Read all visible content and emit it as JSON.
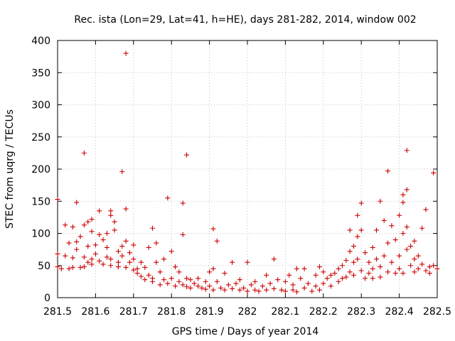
{
  "chart_data": {
    "type": "scatter",
    "title": "Rec. ista (Lon=29, Lat=41, h=HE), days 281-282, 2014, window 002",
    "xlabel": "GPS time / Days of year 2014",
    "ylabel": "STEC from uqrg / TECUs",
    "xlim": [
      281.5,
      282.5
    ],
    "ylim": [
      0,
      400
    ],
    "xticks": [
      281.5,
      281.6,
      281.7,
      281.8,
      281.9,
      282,
      282.1,
      282.2,
      282.3,
      282.4,
      282.5
    ],
    "xtick_labels": [
      "281.5",
      "281.6",
      "281.7",
      "281.8",
      "281.9",
      "282",
      "282.1",
      "282.2",
      "282.3",
      "282.4",
      "282.5"
    ],
    "yticks": [
      0,
      50,
      100,
      150,
      200,
      250,
      300,
      350,
      400
    ],
    "ytick_labels": [
      "0",
      "50",
      "100",
      "150",
      "200",
      "250",
      "300",
      "350",
      "400"
    ],
    "grid": true,
    "marker": "+",
    "color": "#cc0000",
    "series": [
      {
        "name": "STEC",
        "points": [
          [
            281.5,
            153
          ],
          [
            281.5,
            68
          ],
          [
            281.5,
            48
          ],
          [
            281.51,
            45
          ],
          [
            281.52,
            65
          ],
          [
            281.52,
            113
          ],
          [
            281.53,
            85
          ],
          [
            281.53,
            45
          ],
          [
            281.54,
            110
          ],
          [
            281.54,
            62
          ],
          [
            281.54,
            47
          ],
          [
            281.55,
            87
          ],
          [
            281.55,
            148
          ],
          [
            281.55,
            75
          ],
          [
            281.56,
            47
          ],
          [
            281.56,
            95
          ],
          [
            281.57,
            63
          ],
          [
            281.57,
            113
          ],
          [
            281.57,
            225
          ],
          [
            281.57,
            48
          ],
          [
            281.58,
            118
          ],
          [
            281.58,
            80
          ],
          [
            281.58,
            55
          ],
          [
            281.59,
            103
          ],
          [
            281.59,
            122
          ],
          [
            281.59,
            60
          ],
          [
            281.59,
            52
          ],
          [
            281.6,
            82
          ],
          [
            281.6,
            68
          ],
          [
            281.61,
            98
          ],
          [
            281.61,
            135
          ],
          [
            281.61,
            57
          ],
          [
            281.62,
            90
          ],
          [
            281.62,
            52
          ],
          [
            281.63,
            100
          ],
          [
            281.63,
            63
          ],
          [
            281.63,
            78
          ],
          [
            281.64,
            128
          ],
          [
            281.64,
            135
          ],
          [
            281.64,
            60
          ],
          [
            281.64,
            50
          ],
          [
            281.65,
            118
          ],
          [
            281.65,
            105
          ],
          [
            281.66,
            72
          ],
          [
            281.66,
            55
          ],
          [
            281.66,
            48
          ],
          [
            281.67,
            196
          ],
          [
            281.67,
            80
          ],
          [
            281.67,
            65
          ],
          [
            281.68,
            380
          ],
          [
            281.68,
            138
          ],
          [
            281.68,
            88
          ],
          [
            281.68,
            47
          ],
          [
            281.69,
            70
          ],
          [
            281.69,
            55
          ],
          [
            281.7,
            82
          ],
          [
            281.7,
            60
          ],
          [
            281.7,
            43
          ],
          [
            281.71,
            45
          ],
          [
            281.71,
            38
          ],
          [
            281.72,
            55
          ],
          [
            281.72,
            33
          ],
          [
            281.73,
            47
          ],
          [
            281.73,
            28
          ],
          [
            281.74,
            78
          ],
          [
            281.74,
            35
          ],
          [
            281.75,
            108
          ],
          [
            281.75,
            30
          ],
          [
            281.75,
            25
          ],
          [
            281.76,
            85
          ],
          [
            281.76,
            55
          ],
          [
            281.77,
            20
          ],
          [
            281.77,
            40
          ],
          [
            281.78,
            60
          ],
          [
            281.78,
            28
          ],
          [
            281.79,
            155
          ],
          [
            281.79,
            22
          ],
          [
            281.8,
            72
          ],
          [
            281.8,
            30
          ],
          [
            281.81,
            48
          ],
          [
            281.81,
            18
          ],
          [
            281.82,
            40
          ],
          [
            281.82,
            25
          ],
          [
            281.83,
            147
          ],
          [
            281.83,
            98
          ],
          [
            281.83,
            20
          ],
          [
            281.84,
            222
          ],
          [
            281.84,
            30
          ],
          [
            281.84,
            17
          ],
          [
            281.85,
            28
          ],
          [
            281.85,
            15
          ],
          [
            281.86,
            22
          ],
          [
            281.87,
            18
          ],
          [
            281.87,
            30
          ],
          [
            281.88,
            15
          ],
          [
            281.89,
            25
          ],
          [
            281.89,
            13
          ],
          [
            281.9,
            40
          ],
          [
            281.9,
            18
          ],
          [
            281.91,
            107
          ],
          [
            281.91,
            45
          ],
          [
            281.91,
            12
          ],
          [
            281.92,
            88
          ],
          [
            281.92,
            25
          ],
          [
            281.93,
            15
          ],
          [
            281.94,
            38
          ],
          [
            281.94,
            12
          ],
          [
            281.95,
            20
          ],
          [
            281.96,
            55
          ],
          [
            281.96,
            14
          ],
          [
            281.97,
            22
          ],
          [
            281.98,
            12
          ],
          [
            281.98,
            28
          ],
          [
            281.99,
            15
          ],
          [
            282.0,
            55
          ],
          [
            282.0,
            10
          ],
          [
            282.01,
            20
          ],
          [
            282.02,
            25
          ],
          [
            282.02,
            12
          ],
          [
            282.03,
            10
          ],
          [
            282.04,
            18
          ],
          [
            282.05,
            35
          ],
          [
            282.05,
            12
          ],
          [
            282.06,
            22
          ],
          [
            282.07,
            60
          ],
          [
            282.07,
            14
          ],
          [
            282.08,
            28
          ],
          [
            282.09,
            12
          ],
          [
            282.1,
            25
          ],
          [
            282.1,
            10
          ],
          [
            282.11,
            35
          ],
          [
            282.12,
            20
          ],
          [
            282.12,
            12
          ],
          [
            282.13,
            45
          ],
          [
            282.13,
            9
          ],
          [
            282.14,
            30
          ],
          [
            282.15,
            45
          ],
          [
            282.15,
            15
          ],
          [
            282.16,
            22
          ],
          [
            282.17,
            10
          ],
          [
            282.18,
            35
          ],
          [
            282.18,
            18
          ],
          [
            282.19,
            48
          ],
          [
            282.19,
            12
          ],
          [
            282.2,
            40
          ],
          [
            282.2,
            22
          ],
          [
            282.21,
            30
          ],
          [
            282.22,
            35
          ],
          [
            282.22,
            18
          ],
          [
            282.23,
            38
          ],
          [
            282.24,
            45
          ],
          [
            282.24,
            25
          ],
          [
            282.25,
            50
          ],
          [
            282.25,
            30
          ],
          [
            282.26,
            58
          ],
          [
            282.26,
            32
          ],
          [
            282.27,
            105
          ],
          [
            282.27,
            72
          ],
          [
            282.27,
            40
          ],
          [
            282.28,
            80
          ],
          [
            282.28,
            55
          ],
          [
            282.28,
            35
          ],
          [
            282.29,
            128
          ],
          [
            282.29,
            95
          ],
          [
            282.29,
            60
          ],
          [
            282.3,
            147
          ],
          [
            282.3,
            105
          ],
          [
            282.3,
            42
          ],
          [
            282.31,
            70
          ],
          [
            282.31,
            30
          ],
          [
            282.32,
            55
          ],
          [
            282.32,
            38
          ],
          [
            282.33,
            78
          ],
          [
            282.33,
            45
          ],
          [
            282.33,
            30
          ],
          [
            282.34,
            105
          ],
          [
            282.34,
            60
          ],
          [
            282.35,
            150
          ],
          [
            282.35,
            48
          ],
          [
            282.35,
            32
          ],
          [
            282.36,
            120
          ],
          [
            282.36,
            65
          ],
          [
            282.37,
            197
          ],
          [
            282.37,
            85
          ],
          [
            282.37,
            40
          ],
          [
            282.38,
            112
          ],
          [
            282.38,
            55
          ],
          [
            282.39,
            90
          ],
          [
            282.39,
            38
          ],
          [
            282.4,
            128
          ],
          [
            282.4,
            65
          ],
          [
            282.4,
            45
          ],
          [
            282.41,
            148
          ],
          [
            282.41,
            160
          ],
          [
            282.41,
            100
          ],
          [
            282.41,
            38
          ],
          [
            282.42,
            229
          ],
          [
            282.42,
            168
          ],
          [
            282.42,
            110
          ],
          [
            282.42,
            75
          ],
          [
            282.43,
            80
          ],
          [
            282.43,
            50
          ],
          [
            282.44,
            88
          ],
          [
            282.44,
            60
          ],
          [
            282.44,
            40
          ],
          [
            282.45,
            65
          ],
          [
            282.45,
            45
          ],
          [
            282.46,
            108
          ],
          [
            282.46,
            52
          ],
          [
            282.47,
            137
          ],
          [
            282.47,
            42
          ],
          [
            282.48,
            48
          ],
          [
            282.48,
            38
          ],
          [
            282.49,
            194
          ],
          [
            282.49,
            50
          ],
          [
            282.5,
            45
          ]
        ]
      }
    ]
  }
}
